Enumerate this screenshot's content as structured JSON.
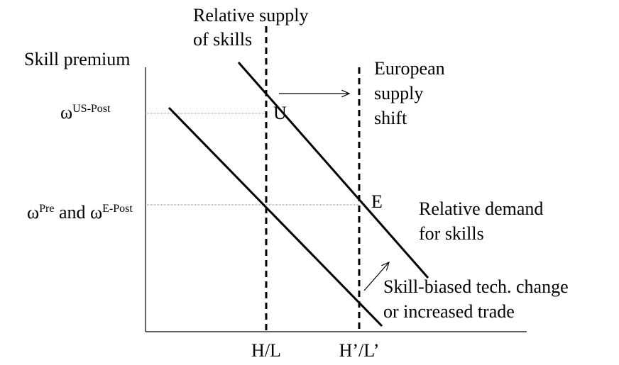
{
  "axis": {
    "y_label": "Skill premium",
    "x_ticks": [
      "H/L",
      "H’/L’"
    ]
  },
  "supply_label": [
    "Relative supply",
    "of skills"
  ],
  "shift_label": [
    "European",
    "supply",
    "shift"
  ],
  "wage_levels": [
    {
      "symbol": "ω",
      "sup": "US-Post"
    },
    {
      "symbol": "ω",
      "sup": "Pre",
      "text": " and ",
      "symbol2": "ω",
      "sup2": "E-Post"
    }
  ],
  "points": [
    "U",
    "E"
  ],
  "demand_label": [
    "Relative demand",
    "for skills"
  ],
  "shift_cause": [
    "Skill-biased tech. change",
    "or increased trade"
  ]
}
